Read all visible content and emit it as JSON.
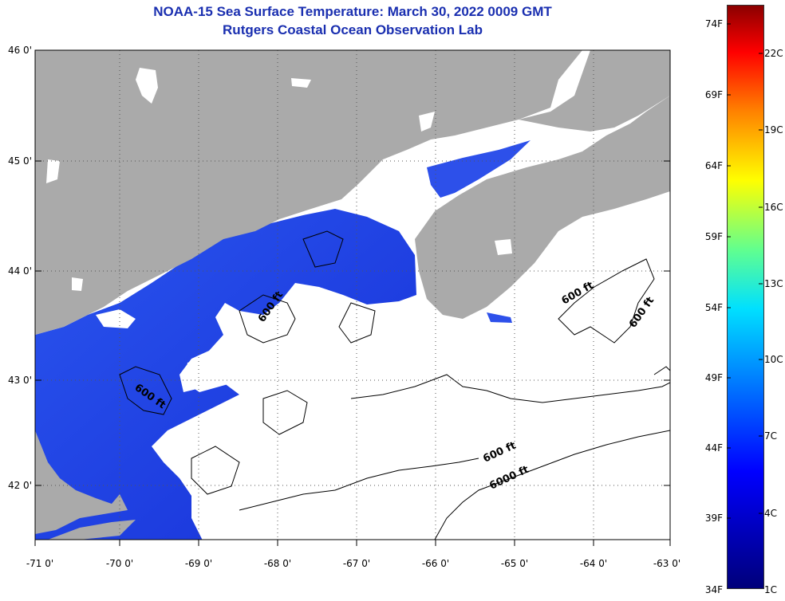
{
  "header": {
    "title": "NOAA-15 Sea Surface Temperature:  March 30, 2022 0009 GMT",
    "subtitle": "Rutgers Coastal Ocean Observation Lab"
  },
  "axes": {
    "lat_labels": [
      "46 0'",
      "45 0'",
      "44 0'",
      "43 0'",
      "42 0'"
    ],
    "lon_labels": [
      "-71 0'",
      "-70 0'",
      "-69 0'",
      "-68 0'",
      "-67 0'",
      "-66 0'",
      "-65 0'",
      "-64 0'",
      "-63 0'"
    ]
  },
  "contours": {
    "c1": "600 ft",
    "c2": "600 ft",
    "c3": "600 ft",
    "c4": "600 ft",
    "c5": "600 ft",
    "c6": "6000 ft"
  },
  "colorbar": {
    "f_labels": [
      "74F",
      "69F",
      "64F",
      "59F",
      "54F",
      "49F",
      "44F",
      "39F",
      "34F"
    ],
    "c_labels": [
      "22C",
      "19C",
      "16C",
      "13C",
      "10C",
      "7C",
      "4C",
      "1C"
    ]
  },
  "colors": {
    "land": "#aaaaaa",
    "water_nodata": "#ffffff",
    "sst_cold": "#1f3fe8",
    "title": "#1a2fb0"
  }
}
